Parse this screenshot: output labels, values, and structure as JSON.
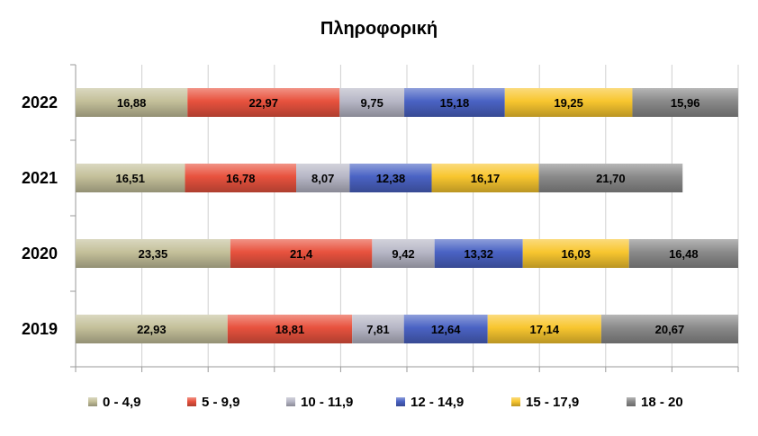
{
  "chart_data": {
    "type": "bar",
    "orientation": "horizontal",
    "stacked": true,
    "title": "Πληροφορική",
    "categories": [
      "2022",
      "2021",
      "2020",
      "2019"
    ],
    "value_labels": [
      [
        "16,88",
        "22,97",
        "9,75",
        "15,18",
        "19,25",
        "15,96"
      ],
      [
        "16,51",
        "16,78",
        "8,07",
        "12,38",
        "16,17",
        "21,70"
      ],
      [
        "23,35",
        "21,4",
        "9,42",
        "13,32",
        "16,03",
        "16,48"
      ],
      [
        "22,93",
        "18,81",
        "7,81",
        "12,64",
        "17,14",
        "20,67"
      ]
    ],
    "series": [
      {
        "name": "0  -  4,9",
        "color": "#c4c09a",
        "values": [
          16.88,
          16.51,
          23.35,
          22.93
        ]
      },
      {
        "name": "5  -  9,9",
        "color": "#e8523e",
        "values": [
          22.97,
          16.78,
          21.4,
          18.81
        ]
      },
      {
        "name": "10 - 11,9",
        "color": "#b7b7c6",
        "values": [
          9.75,
          8.07,
          9.42,
          7.81
        ]
      },
      {
        "name": "12  - 14,9",
        "color": "#4a63c4",
        "values": [
          15.18,
          12.38,
          13.32,
          12.64
        ]
      },
      {
        "name": "15  - 17,9",
        "color": "#f8c62f",
        "values": [
          19.25,
          16.17,
          16.03,
          17.14
        ]
      },
      {
        "name": "18  - 20",
        "color": "#8a8a8a",
        "values": [
          15.96,
          21.7,
          16.48,
          20.67
        ]
      }
    ],
    "xlim": [
      0,
      100
    ],
    "grid": true,
    "legend_position": "bottom"
  }
}
